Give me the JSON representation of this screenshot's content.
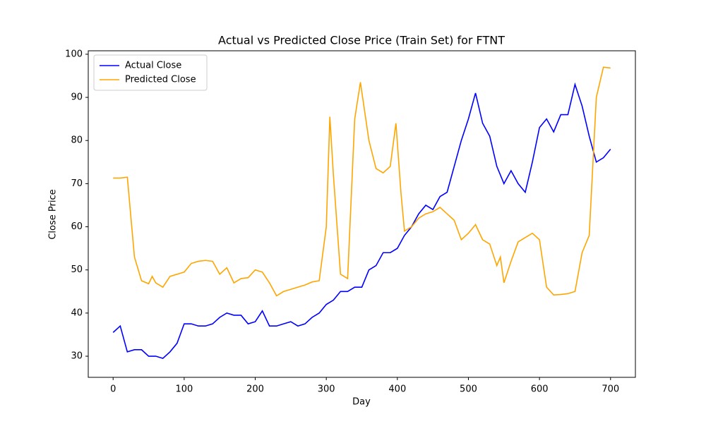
{
  "chart_data": {
    "type": "line",
    "title": "Actual vs Predicted Close Price (Train Set) for FTNT",
    "x_label": "Day",
    "y_label": "Close Price",
    "xlim": [
      -35,
      735
    ],
    "ylim": [
      25.1,
      100.8
    ],
    "xticks": [
      0,
      100,
      200,
      300,
      400,
      500,
      600,
      700
    ],
    "yticks": [
      30,
      40,
      50,
      60,
      70,
      80,
      90,
      100
    ],
    "legend": "upper left",
    "series": [
      {
        "name": "Actual Close",
        "color": "#0000ff",
        "x": [
          0,
          10,
          20,
          30,
          40,
          50,
          60,
          70,
          80,
          90,
          100,
          110,
          120,
          130,
          140,
          150,
          160,
          170,
          180,
          190,
          200,
          210,
          220,
          230,
          240,
          250,
          260,
          270,
          280,
          290,
          300,
          310,
          320,
          330,
          340,
          350,
          360,
          370,
          380,
          390,
          400,
          410,
          420,
          430,
          440,
          450,
          460,
          470,
          480,
          490,
          500,
          510,
          520,
          530,
          540,
          550,
          560,
          570,
          580,
          590,
          600,
          610,
          620,
          630,
          640,
          650,
          660,
          670,
          680,
          690,
          700
        ],
        "values": [
          35.5,
          37,
          31,
          31.5,
          31.5,
          30,
          30,
          29.5,
          31,
          33,
          37.5,
          37.5,
          37,
          37,
          37.5,
          39,
          40,
          39.5,
          39.5,
          37.5,
          38,
          40.5,
          37,
          37,
          37.5,
          38,
          37,
          37.5,
          39,
          40,
          42,
          43,
          45,
          45,
          46,
          46,
          50,
          51,
          54,
          54,
          55,
          58,
          60,
          63,
          65,
          64,
          67,
          68,
          74,
          80,
          85,
          91,
          84,
          81,
          74,
          70,
          73,
          70,
          68,
          75,
          83,
          85,
          82,
          86,
          86,
          93,
          88,
          81,
          75,
          76,
          78
        ]
      },
      {
        "name": "Predicted Close",
        "color": "#ffa500",
        "x": [
          0,
          10,
          20,
          30,
          40,
          50,
          55,
          60,
          70,
          80,
          90,
          100,
          110,
          120,
          130,
          140,
          150,
          160,
          170,
          180,
          190,
          200,
          210,
          220,
          230,
          240,
          250,
          260,
          270,
          280,
          290,
          300,
          305,
          310,
          320,
          330,
          340,
          348,
          360,
          370,
          380,
          390,
          398,
          405,
          410,
          420,
          430,
          440,
          450,
          460,
          470,
          480,
          490,
          500,
          510,
          520,
          530,
          540,
          545,
          550,
          560,
          570,
          580,
          590,
          600,
          610,
          620,
          630,
          640,
          650,
          660,
          670,
          680,
          690,
          700
        ],
        "values": [
          71.3,
          71.3,
          71.5,
          53,
          47.5,
          46.8,
          48.5,
          47,
          46,
          48.5,
          49,
          49.5,
          51.5,
          52,
          52.2,
          52,
          49,
          50.5,
          47,
          48,
          48.2,
          50,
          49.5,
          47,
          44,
          45,
          45.5,
          46,
          46.5,
          47.2,
          47.5,
          60,
          85.5,
          72,
          49,
          48,
          85,
          93.5,
          80,
          73.5,
          72.5,
          74,
          84,
          68,
          59,
          60,
          62,
          63,
          63.5,
          64.5,
          63,
          61.5,
          57,
          58.5,
          60.5,
          57,
          56,
          51,
          53,
          47,
          52,
          56.5,
          57.5,
          58.5,
          57,
          46,
          44.2,
          44.3,
          44.5,
          45,
          54,
          58,
          90,
          97,
          96.8
        ]
      }
    ]
  }
}
